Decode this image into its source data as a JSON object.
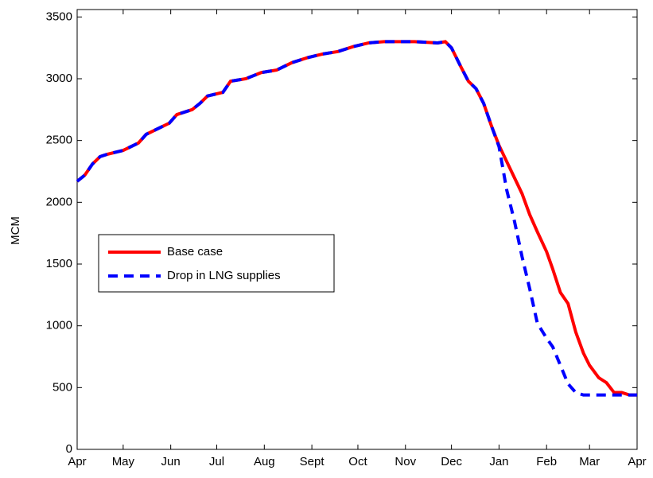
{
  "chart_data": {
    "type": "line",
    "ylabel": "MCM",
    "x": [
      0,
      5,
      10,
      15,
      20,
      30,
      40,
      45,
      55,
      60,
      65,
      75,
      80,
      85,
      95,
      100,
      110,
      120,
      130,
      140,
      150,
      160,
      170,
      180,
      190,
      200,
      220,
      235,
      240,
      244,
      250,
      255,
      260,
      265,
      270,
      275,
      280,
      285,
      290,
      295,
      300,
      306,
      310,
      315,
      320,
      325,
      330,
      334,
      340,
      345,
      350,
      355,
      360,
      365
    ],
    "series": [
      {
        "name": "Base case",
        "color": "#ff0000",
        "dash": "solid",
        "values": [
          2170,
          2220,
          2310,
          2370,
          2390,
          2420,
          2480,
          2550,
          2610,
          2640,
          2710,
          2750,
          2800,
          2860,
          2890,
          2980,
          3000,
          3050,
          3070,
          3130,
          3170,
          3200,
          3220,
          3260,
          3290,
          3300,
          3300,
          3290,
          3300,
          3250,
          3100,
          2980,
          2920,
          2800,
          2620,
          2460,
          2330,
          2200,
          2070,
          1900,
          1760,
          1600,
          1460,
          1270,
          1180,
          950,
          780,
          680,
          580,
          540,
          460,
          460,
          440,
          440
        ]
      },
      {
        "name": "Drop in LNG supplies",
        "color": "#0000ff",
        "dash": "dashed",
        "values": [
          2170,
          2220,
          2310,
          2370,
          2390,
          2420,
          2480,
          2550,
          2610,
          2640,
          2710,
          2750,
          2800,
          2860,
          2890,
          2980,
          3000,
          3050,
          3070,
          3130,
          3170,
          3200,
          3220,
          3260,
          3290,
          3300,
          3300,
          3290,
          3300,
          3250,
          3100,
          2980,
          2920,
          2800,
          2620,
          2450,
          2100,
          1850,
          1560,
          1300,
          1020,
          900,
          830,
          680,
          530,
          460,
          440,
          440,
          440,
          440,
          440,
          440,
          440,
          440
        ]
      }
    ],
    "xlim": [
      0,
      365
    ],
    "xticks": [
      {
        "value": 0,
        "label": "Apr"
      },
      {
        "value": 30,
        "label": "May"
      },
      {
        "value": 61,
        "label": "Jun"
      },
      {
        "value": 91,
        "label": "Jul"
      },
      {
        "value": 122,
        "label": "Aug"
      },
      {
        "value": 153,
        "label": "Sept"
      },
      {
        "value": 183,
        "label": "Oct"
      },
      {
        "value": 214,
        "label": "Nov"
      },
      {
        "value": 244,
        "label": "Dec"
      },
      {
        "value": 275,
        "label": "Jan"
      },
      {
        "value": 306,
        "label": "Feb"
      },
      {
        "value": 334,
        "label": "Mar"
      },
      {
        "value": 365,
        "label": "Apr"
      }
    ],
    "ylim": [
      0,
      3560
    ],
    "yticks": [
      0,
      500,
      1000,
      1500,
      2000,
      2500,
      3000,
      3500
    ],
    "grid": false,
    "legend": "center-left"
  }
}
